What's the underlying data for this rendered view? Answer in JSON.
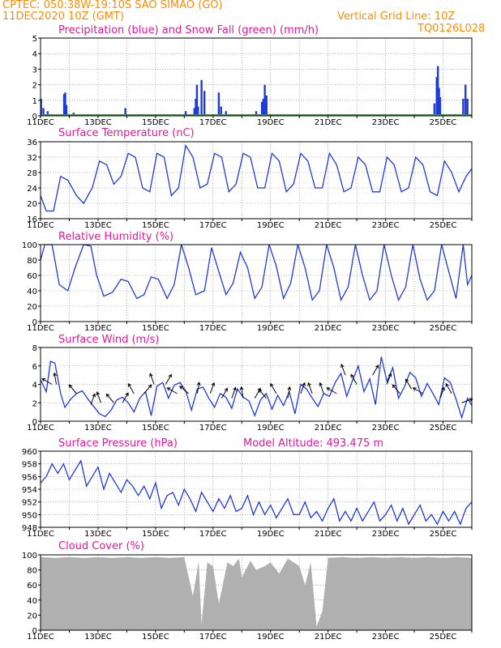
{
  "header": {
    "source_line": "CPTEC:   050:38W-19:10S   SAO SIMAO (GO)",
    "date_line": "11DEC2020 10Z (GMT)",
    "grid_note": "Vertical Grid Line: 10Z",
    "code": "TQ0126L028"
  },
  "colors": {
    "header": "#ff8c00",
    "title": "#e0189b",
    "series_blue": "#1f3bd6",
    "snow_green": "#22aa22",
    "cloud_gray": "#b0b0b0",
    "grid": "#808080"
  },
  "chart_data": [
    {
      "type": "bar",
      "title": "Precipitation (blue) and Snow Fall (green) (mm/h)",
      "ylim": [
        0,
        5
      ],
      "yticks": [
        0,
        1,
        2,
        3,
        4,
        5
      ],
      "x_start_day": 11,
      "x_end_day": 26,
      "xtick_labels": [
        "11DEC",
        "13DEC",
        "15DEC",
        "17DEC",
        "19DEC",
        "21DEC",
        "23DEC",
        "25DEC"
      ],
      "bars": [
        [
          11.02,
          1.1
        ],
        [
          11.1,
          0.5
        ],
        [
          11.25,
          0.3
        ],
        [
          11.82,
          1.4
        ],
        [
          11.86,
          1.5
        ],
        [
          11.9,
          0.7
        ],
        [
          12.15,
          0.2
        ],
        [
          13.95,
          0.5
        ],
        [
          16.05,
          0.3
        ],
        [
          16.35,
          0.5
        ],
        [
          16.4,
          1.1
        ],
        [
          16.44,
          2.0
        ],
        [
          16.48,
          0.6
        ],
        [
          16.6,
          2.3
        ],
        [
          16.7,
          1.6
        ],
        [
          17.2,
          1.5
        ],
        [
          17.28,
          0.6
        ],
        [
          17.45,
          0.3
        ],
        [
          18.5,
          0.3
        ],
        [
          18.7,
          0.9
        ],
        [
          18.75,
          1.1
        ],
        [
          18.8,
          2.0
        ],
        [
          18.86,
          1.3
        ],
        [
          20.5,
          0.1
        ],
        [
          24.7,
          0.8
        ],
        [
          24.78,
          2.5
        ],
        [
          24.82,
          3.2
        ],
        [
          24.86,
          1.8
        ],
        [
          24.9,
          1.2
        ],
        [
          25.7,
          1.1
        ],
        [
          25.78,
          2.0
        ],
        [
          25.85,
          1.1
        ]
      ],
      "snow": []
    },
    {
      "type": "line",
      "title": "Surface Temperature (nC)",
      "ylim": [
        16,
        36
      ],
      "yticks": [
        16,
        20,
        24,
        28,
        32,
        36
      ],
      "xtick_labels": [
        "11DEC",
        "13DEC",
        "15DEC",
        "17DEC",
        "19DEC",
        "21DEC",
        "23DEC",
        "25DEC"
      ],
      "x": [
        11.0,
        11.2,
        11.45,
        11.7,
        11.95,
        12.25,
        12.5,
        12.8,
        13.05,
        13.3,
        13.55,
        13.8,
        14.05,
        14.3,
        14.55,
        14.8,
        15.05,
        15.3,
        15.55,
        15.8,
        16.05,
        16.3,
        16.55,
        16.8,
        17.05,
        17.3,
        17.55,
        17.8,
        18.05,
        18.3,
        18.55,
        18.8,
        19.05,
        19.3,
        19.55,
        19.8,
        20.05,
        20.3,
        20.55,
        20.8,
        21.05,
        21.3,
        21.55,
        21.8,
        22.05,
        22.3,
        22.55,
        22.8,
        23.05,
        23.3,
        23.55,
        23.8,
        24.05,
        24.3,
        24.55,
        24.8,
        25.05,
        25.3,
        25.55,
        25.8,
        26.0
      ],
      "y": [
        22,
        18,
        18,
        27,
        26,
        22,
        20,
        24,
        31,
        30,
        25,
        27,
        33,
        32,
        24,
        23,
        33,
        32,
        22,
        24,
        35,
        32,
        24,
        25,
        33,
        32,
        23,
        25,
        33,
        32,
        24,
        24,
        33,
        31,
        23,
        25,
        33,
        31,
        24,
        24,
        33,
        30,
        23,
        24,
        32,
        30,
        23,
        23,
        32,
        30,
        23,
        24,
        32,
        30,
        23,
        22,
        31,
        28,
        23,
        27,
        29
      ]
    },
    {
      "type": "line",
      "title": "Relative Humidity (%)",
      "ylim": [
        0,
        100
      ],
      "yticks": [
        0,
        20,
        40,
        60,
        80,
        100
      ],
      "xtick_labels": [
        "11DEC",
        "13DEC",
        "15DEC",
        "17DEC",
        "19DEC",
        "21DEC",
        "23DEC",
        "25DEC"
      ],
      "x": [
        11.0,
        11.15,
        11.4,
        11.65,
        11.95,
        12.2,
        12.5,
        12.75,
        12.95,
        13.2,
        13.5,
        13.8,
        14.05,
        14.35,
        14.6,
        14.85,
        15.1,
        15.4,
        15.65,
        15.9,
        16.15,
        16.4,
        16.7,
        16.95,
        17.2,
        17.45,
        17.7,
        17.95,
        18.2,
        18.45,
        18.7,
        18.95,
        19.2,
        19.45,
        19.7,
        19.95,
        20.2,
        20.45,
        20.7,
        20.95,
        21.2,
        21.45,
        21.7,
        21.95,
        22.2,
        22.45,
        22.7,
        22.95,
        23.2,
        23.45,
        23.7,
        23.95,
        24.2,
        24.45,
        24.7,
        24.95,
        25.2,
        25.45,
        25.7,
        25.85,
        26.0
      ],
      "y": [
        80,
        100,
        100,
        48,
        40,
        70,
        100,
        98,
        60,
        33,
        38,
        55,
        52,
        30,
        35,
        58,
        55,
        30,
        48,
        100,
        70,
        35,
        40,
        96,
        65,
        35,
        50,
        90,
        70,
        30,
        45,
        100,
        72,
        30,
        50,
        100,
        70,
        28,
        40,
        100,
        70,
        28,
        45,
        100,
        60,
        28,
        40,
        100,
        60,
        28,
        45,
        100,
        55,
        28,
        40,
        100,
        65,
        30,
        100,
        48,
        60
      ]
    },
    {
      "type": "line",
      "title": "Surface Wind (m/s)",
      "ylim": [
        0,
        8
      ],
      "yticks": [
        0,
        2,
        4,
        6,
        8
      ],
      "xtick_labels": [
        "11DEC",
        "13DEC",
        "15DEC",
        "17DEC",
        "19DEC",
        "21DEC",
        "23DEC",
        "25DEC"
      ],
      "x": [
        11.0,
        11.2,
        11.35,
        11.5,
        11.7,
        11.85,
        12.05,
        12.25,
        12.45,
        12.65,
        12.85,
        13.05,
        13.25,
        13.45,
        13.65,
        13.85,
        14.05,
        14.25,
        14.45,
        14.65,
        14.85,
        15.05,
        15.25,
        15.45,
        15.65,
        15.85,
        16.05,
        16.25,
        16.45,
        16.65,
        16.85,
        17.05,
        17.25,
        17.45,
        17.65,
        17.85,
        18.05,
        18.25,
        18.45,
        18.65,
        18.85,
        19.05,
        19.25,
        19.45,
        19.65,
        19.85,
        20.05,
        20.25,
        20.45,
        20.65,
        20.85,
        21.05,
        21.25,
        21.45,
        21.65,
        21.85,
        22.05,
        22.25,
        22.45,
        22.65,
        22.85,
        23.05,
        23.25,
        23.45,
        23.65,
        23.85,
        24.05,
        24.25,
        24.45,
        24.65,
        24.85,
        25.05,
        25.25,
        25.45,
        25.65,
        25.85,
        26.0
      ],
      "y": [
        4.5,
        3.2,
        6.5,
        6.3,
        3.0,
        1.5,
        2.4,
        3.0,
        3.3,
        2.4,
        1.6,
        0.8,
        0.5,
        1.2,
        2.3,
        2.6,
        2.0,
        1.0,
        2.5,
        3.2,
        0.6,
        3.8,
        4.2,
        2.5,
        3.9,
        4.2,
        3.3,
        1.2,
        3.5,
        3.7,
        2.5,
        1.5,
        3.0,
        2.6,
        1.4,
        3.5,
        2.6,
        2.2,
        0.6,
        2.3,
        3.0,
        1.3,
        2.8,
        1.7,
        3.2,
        0.8,
        4.0,
        3.5,
        2.5,
        1.6,
        3.0,
        2.7,
        4.2,
        5.2,
        2.7,
        4.4,
        6.0,
        3.2,
        4.6,
        1.8,
        7.0,
        4.3,
        5.8,
        2.5,
        3.7,
        5.3,
        4.7,
        2.7,
        4.1,
        3.0,
        1.8,
        4.7,
        4.2,
        2.4,
        0.4,
        2.5,
        1.7
      ],
      "arrows": [
        [
          11.4,
          300,
          4.0
        ],
        [
          11.55,
          350,
          4.0
        ],
        [
          12.25,
          320,
          3.0
        ],
        [
          12.75,
          20,
          1.8
        ],
        [
          13.1,
          340,
          2.0
        ],
        [
          13.55,
          320,
          2.0
        ],
        [
          13.85,
          30,
          2.0
        ],
        [
          14.25,
          330,
          3.0
        ],
        [
          14.6,
          40,
          3.0
        ],
        [
          14.95,
          340,
          4.0
        ],
        [
          15.35,
          30,
          4.0
        ],
        [
          15.75,
          300,
          3.0
        ],
        [
          16.15,
          310,
          3.0
        ],
        [
          16.45,
          10,
          3.0
        ],
        [
          16.9,
          20,
          3.0
        ],
        [
          17.3,
          30,
          2.5
        ],
        [
          17.65,
          20,
          2.5
        ],
        [
          18.05,
          350,
          2.5
        ],
        [
          18.45,
          30,
          2.5
        ],
        [
          18.85,
          320,
          2.5
        ],
        [
          19.2,
          330,
          3.0
        ],
        [
          19.6,
          10,
          2.5
        ],
        [
          20.05,
          20,
          3.0
        ],
        [
          20.45,
          340,
          3.0
        ],
        [
          20.85,
          340,
          3.0
        ],
        [
          21.3,
          300,
          3.0
        ],
        [
          21.6,
          340,
          5.0
        ],
        [
          22.0,
          330,
          4.0
        ],
        [
          22.55,
          30,
          5.0
        ],
        [
          23.05,
          20,
          4.0
        ],
        [
          23.5,
          320,
          3.0
        ],
        [
          23.9,
          330,
          3.5
        ],
        [
          24.3,
          300,
          3.0
        ],
        [
          24.9,
          20,
          2.5
        ],
        [
          25.3,
          330,
          3.0
        ],
        [
          25.65,
          70,
          2.0
        ]
      ]
    },
    {
      "type": "line",
      "title": "Surface Pressure (hPa)",
      "annotation": "Model Altitude: 493.475 m",
      "ylim": [
        948,
        960
      ],
      "yticks": [
        948,
        950,
        952,
        954,
        956,
        958,
        960
      ],
      "xtick_labels": [
        "11DEC",
        "13DEC",
        "15DEC",
        "17DEC",
        "19DEC",
        "21DEC",
        "23DEC",
        "25DEC"
      ],
      "x": [
        11.0,
        11.2,
        11.4,
        11.6,
        11.8,
        12.0,
        12.2,
        12.4,
        12.6,
        12.8,
        13.0,
        13.2,
        13.4,
        13.6,
        13.8,
        14.0,
        14.2,
        14.4,
        14.6,
        14.8,
        15.0,
        15.2,
        15.4,
        15.6,
        15.8,
        16.0,
        16.2,
        16.4,
        16.6,
        16.8,
        17.0,
        17.2,
        17.4,
        17.6,
        17.8,
        18.0,
        18.2,
        18.4,
        18.6,
        18.8,
        19.0,
        19.2,
        19.4,
        19.6,
        19.8,
        20.0,
        20.2,
        20.4,
        20.6,
        20.8,
        21.0,
        21.2,
        21.4,
        21.6,
        21.8,
        22.0,
        22.2,
        22.4,
        22.6,
        22.8,
        23.0,
        23.2,
        23.4,
        23.6,
        23.8,
        24.0,
        24.2,
        24.4,
        24.6,
        24.8,
        25.0,
        25.2,
        25.4,
        25.6,
        25.8,
        26.0
      ],
      "y": [
        955,
        956,
        958,
        956.5,
        958,
        955.5,
        957,
        958.5,
        954.5,
        956,
        957.5,
        954,
        956.5,
        955,
        953.5,
        955.5,
        954.5,
        953,
        954.5,
        952.5,
        955,
        951,
        953,
        953.5,
        951.5,
        954,
        952.5,
        950.5,
        953.5,
        952,
        950.5,
        952.5,
        951,
        953,
        950.5,
        951,
        953,
        950,
        952,
        950,
        951.5,
        949.5,
        951,
        952.5,
        950,
        950,
        952,
        949.5,
        950.5,
        949,
        951,
        952.5,
        949,
        950.5,
        949,
        951,
        949,
        950.5,
        952,
        949,
        950,
        951.5,
        949,
        951,
        948.5,
        950,
        951.5,
        949,
        950,
        948.5,
        950.5,
        949,
        950.5,
        948.5,
        951,
        952
      ]
    },
    {
      "type": "bar",
      "title": "Cloud Cover (%)",
      "ylim": [
        0,
        100
      ],
      "yticks": [
        0,
        20,
        40,
        60,
        80,
        100
      ],
      "xtick_labels": [
        "11DEC",
        "13DEC",
        "15DEC",
        "17DEC",
        "19DEC",
        "21DEC",
        "23DEC",
        "25DEC"
      ],
      "x": [
        11.0,
        11.5,
        12.0,
        12.5,
        13.0,
        13.5,
        14.0,
        14.5,
        15.0,
        15.5,
        16.0,
        16.3,
        16.5,
        16.6,
        16.8,
        17.0,
        17.2,
        17.5,
        17.7,
        17.9,
        18.0,
        18.3,
        18.5,
        18.8,
        19.0,
        19.3,
        19.6,
        19.8,
        20.0,
        20.2,
        20.4,
        20.6,
        20.8,
        21.0,
        21.5,
        22.0,
        22.5,
        23.0,
        23.5,
        24.0,
        24.5,
        25.0,
        25.5,
        26.0
      ],
      "y": [
        97,
        96,
        97,
        96,
        97,
        96,
        97,
        96,
        97,
        96,
        97,
        45,
        92,
        8,
        90,
        85,
        35,
        90,
        85,
        95,
        70,
        92,
        80,
        85,
        90,
        75,
        95,
        90,
        85,
        60,
        90,
        5,
        25,
        96,
        97,
        96,
        97,
        96,
        97,
        96,
        97,
        96,
        97,
        96
      ]
    }
  ]
}
